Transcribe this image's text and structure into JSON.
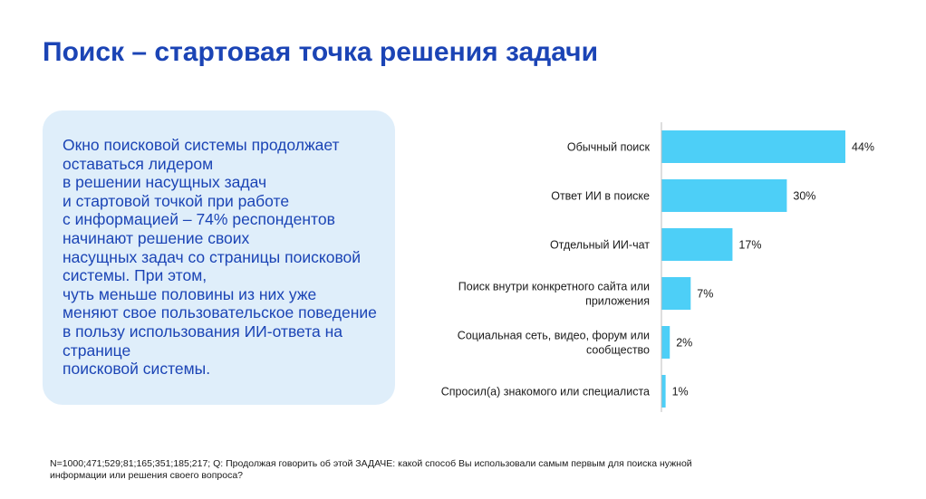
{
  "title": "Поиск – стартовая точка решения задачи",
  "callout": {
    "lines": [
      "Окно поисковой системы продолжает",
      "оставаться лидером",
      "в решении насущных задач",
      "и стартовой точкой при работе",
      "с информацией – 74% респондентов",
      "начинают решение своих",
      "насущных задач со страницы поисковой",
      "системы. При этом,",
      "чуть меньше половины из них уже",
      "меняют свое пользовательское поведение",
      "в пользу использования ИИ-ответа на",
      "странице",
      "поисковой системы."
    ]
  },
  "footnote": {
    "lines": [
      "N=1000;471;529;81;165;351;185;217; Q: Продолжая говорить об этой ЗАДАЧЕ: какой способ Вы использовали самым первым для поиска нужной",
      "информации или решения своего вопроса?"
    ]
  },
  "colors": {
    "title": "#1b44b5",
    "callout_bg": "#dfeefa",
    "bar": "#4dcff7",
    "axis": "#bdbdbd",
    "text": "#1a1a1a"
  },
  "chart_data": {
    "type": "bar",
    "orientation": "horizontal",
    "categories": [
      [
        "Обычный поиск"
      ],
      [
        "Ответ ИИ в поиске"
      ],
      [
        "Отдельный ИИ-чат"
      ],
      [
        "Поиск внутри конкретного сайта или",
        "приложения"
      ],
      [
        "Социальная сеть, видео, форум или",
        "сообщество"
      ],
      [
        "Спросил(а) знакомого или специалиста"
      ]
    ],
    "values": [
      44,
      30,
      17,
      7,
      2,
      1
    ],
    "value_labels": [
      "44%",
      "30%",
      "17%",
      "7%",
      "2%",
      "1%"
    ],
    "unit": "%",
    "xlim": [
      0,
      44
    ],
    "grid": false,
    "legend": "none"
  }
}
